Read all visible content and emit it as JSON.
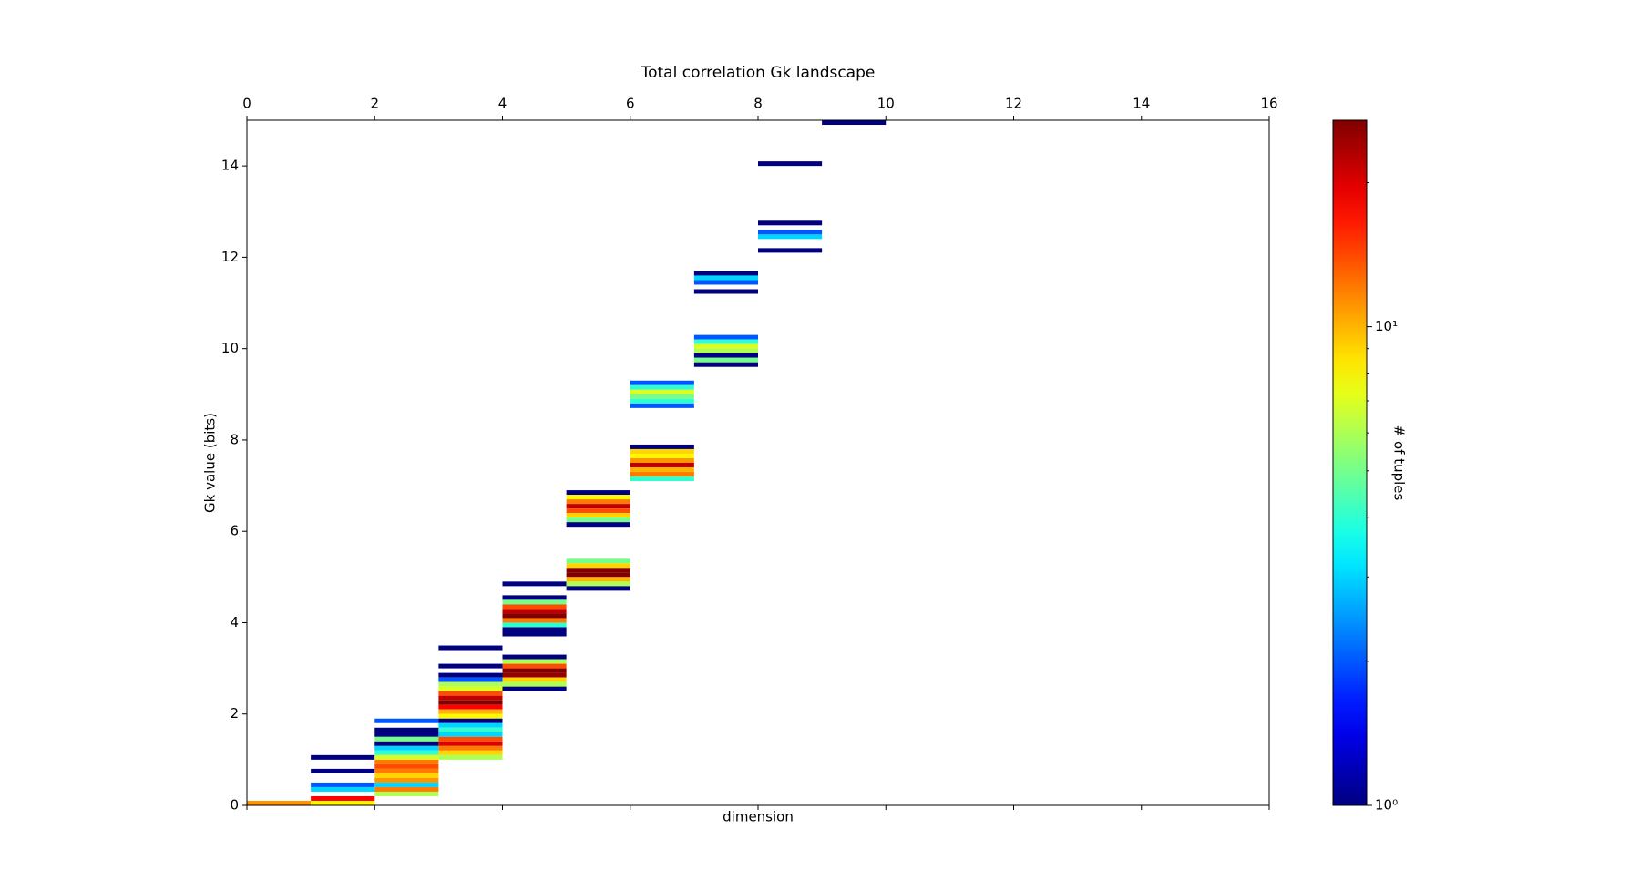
{
  "chart_data": {
    "type": "heatmap2d",
    "title": "Total correlation Gk landscape",
    "xlabel": "dimension",
    "ylabel": "Gk value (bits)",
    "colorbar_label": "# of tuples",
    "xlim": [
      0,
      16
    ],
    "ylim": [
      0,
      15
    ],
    "xticks": [
      0,
      2,
      4,
      6,
      8,
      10,
      12,
      14,
      16
    ],
    "yticks": [
      0,
      2,
      4,
      6,
      8,
      10,
      12,
      14
    ],
    "bin_size": [
      1,
      0.1
    ],
    "colormap": "jet",
    "color_scale": "log",
    "clim": [
      1,
      27
    ],
    "cticks": [
      {
        "value": 1,
        "label": "10⁰"
      },
      {
        "value": 10,
        "label": "10¹"
      }
    ],
    "cminor_ticks": [
      2,
      3,
      4,
      5,
      6,
      7,
      8,
      9,
      20
    ],
    "cells": [
      [
        0,
        0,
        11
      ],
      [
        1,
        1.0,
        1
      ],
      [
        1,
        0.7,
        1
      ],
      [
        1,
        0.4,
        2
      ],
      [
        1,
        0.3,
        3
      ],
      [
        1,
        0.1,
        18
      ],
      [
        1,
        0.0,
        8
      ],
      [
        2,
        1.8,
        2
      ],
      [
        2,
        1.6,
        1
      ],
      [
        2,
        1.5,
        1
      ],
      [
        2,
        1.4,
        5
      ],
      [
        2,
        1.3,
        1
      ],
      [
        2,
        1.2,
        3
      ],
      [
        2,
        1.1,
        4
      ],
      [
        2,
        1.0,
        7
      ],
      [
        2,
        0.9,
        12
      ],
      [
        2,
        0.8,
        14
      ],
      [
        2,
        0.7,
        12
      ],
      [
        2,
        0.6,
        9
      ],
      [
        2,
        0.5,
        11
      ],
      [
        2,
        0.4,
        3
      ],
      [
        2,
        0.3,
        12
      ],
      [
        2,
        0.2,
        6
      ],
      [
        3,
        3.4,
        1
      ],
      [
        3,
        3.0,
        1
      ],
      [
        3,
        2.8,
        1
      ],
      [
        3,
        2.7,
        2
      ],
      [
        3,
        2.6,
        6
      ],
      [
        3,
        2.5,
        7
      ],
      [
        3,
        2.4,
        14
      ],
      [
        3,
        2.3,
        22
      ],
      [
        3,
        2.2,
        27
      ],
      [
        3,
        2.1,
        18
      ],
      [
        3,
        2.0,
        10
      ],
      [
        3,
        1.9,
        8
      ],
      [
        3,
        1.8,
        1
      ],
      [
        3,
        1.7,
        3
      ],
      [
        3,
        1.6,
        4
      ],
      [
        3,
        1.5,
        3
      ],
      [
        3,
        1.4,
        14
      ],
      [
        3,
        1.3,
        20
      ],
      [
        3,
        1.2,
        12
      ],
      [
        3,
        1.1,
        9
      ],
      [
        3,
        1.0,
        6
      ],
      [
        4,
        4.8,
        1
      ],
      [
        4,
        4.5,
        1
      ],
      [
        4,
        4.4,
        5
      ],
      [
        4,
        4.3,
        14
      ],
      [
        4,
        4.2,
        22
      ],
      [
        4,
        4.1,
        27
      ],
      [
        4,
        4.0,
        12
      ],
      [
        4,
        3.9,
        4
      ],
      [
        4,
        3.8,
        1
      ],
      [
        4,
        3.7,
        1
      ],
      [
        4,
        3.2,
        1
      ],
      [
        4,
        3.1,
        6
      ],
      [
        4,
        3.0,
        14
      ],
      [
        4,
        2.9,
        27
      ],
      [
        4,
        2.8,
        25
      ],
      [
        4,
        2.7,
        9
      ],
      [
        4,
        2.6,
        6
      ],
      [
        4,
        2.5,
        1
      ],
      [
        5,
        5.3,
        5
      ],
      [
        5,
        5.2,
        9
      ],
      [
        5,
        5.1,
        27
      ],
      [
        5,
        5.0,
        27
      ],
      [
        5,
        4.9,
        10
      ],
      [
        5,
        4.8,
        6
      ],
      [
        5,
        4.7,
        1
      ],
      [
        5,
        6.8,
        1
      ],
      [
        5,
        6.7,
        8
      ],
      [
        5,
        6.6,
        12
      ],
      [
        5,
        6.5,
        22
      ],
      [
        5,
        6.4,
        14
      ],
      [
        5,
        6.3,
        9
      ],
      [
        5,
        6.2,
        5
      ],
      [
        5,
        6.1,
        1
      ],
      [
        6,
        7.8,
        1
      ],
      [
        6,
        7.7,
        9
      ],
      [
        6,
        7.6,
        8
      ],
      [
        6,
        7.5,
        11
      ],
      [
        6,
        7.4,
        22
      ],
      [
        6,
        7.3,
        10
      ],
      [
        6,
        7.2,
        12
      ],
      [
        6,
        7.1,
        4
      ],
      [
        6,
        9.2,
        2
      ],
      [
        6,
        9.1,
        4
      ],
      [
        6,
        9.0,
        7
      ],
      [
        6,
        8.9,
        5
      ],
      [
        6,
        8.8,
        4
      ],
      [
        6,
        8.7,
        2
      ],
      [
        7,
        11.6,
        1
      ],
      [
        7,
        11.5,
        3
      ],
      [
        7,
        11.4,
        2
      ],
      [
        7,
        11.2,
        1
      ],
      [
        7,
        10.2,
        2
      ],
      [
        7,
        10.1,
        4
      ],
      [
        7,
        10.0,
        7
      ],
      [
        7,
        9.9,
        6
      ],
      [
        7,
        9.8,
        1
      ],
      [
        7,
        9.7,
        5
      ],
      [
        7,
        9.6,
        1
      ],
      [
        8,
        14.0,
        1
      ],
      [
        8,
        12.7,
        1
      ],
      [
        8,
        12.5,
        2
      ],
      [
        8,
        12.4,
        3
      ],
      [
        8,
        12.1,
        1
      ],
      [
        9,
        14.9,
        1
      ]
    ]
  }
}
